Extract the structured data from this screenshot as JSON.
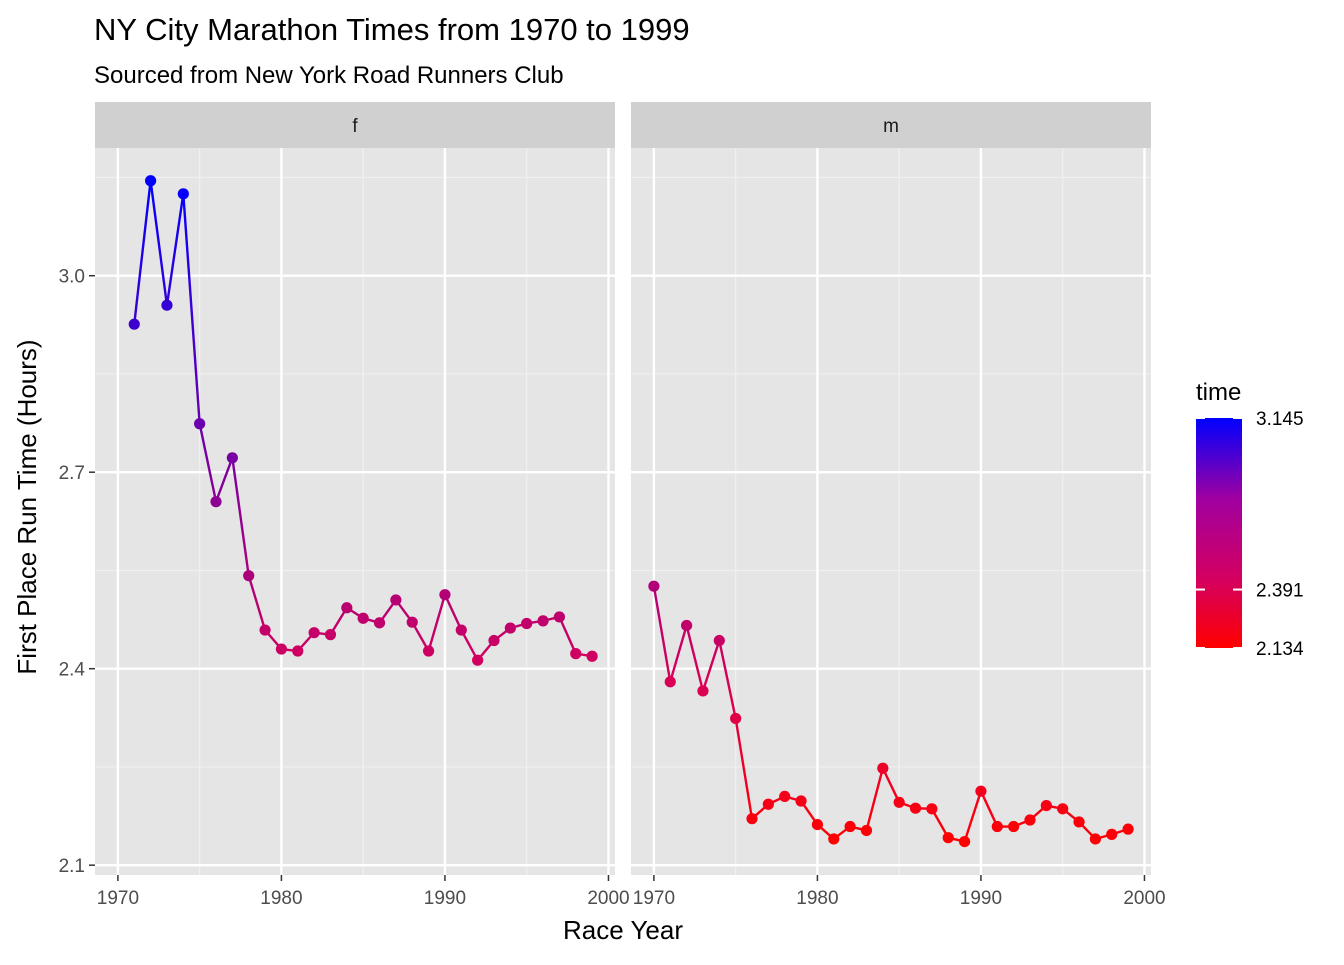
{
  "chart_data": {
    "type": "line",
    "title": "NY City Marathon Times from 1970 to 1999",
    "subtitle": "Sourced from New York Road Runners Club",
    "xlabel": "Race Year",
    "ylabel": "First Place Run Time (Hours)",
    "xlim": [
      1968.6,
      2000.4
    ],
    "ylim": [
      2.085,
      3.195
    ],
    "x_ticks": [
      1970,
      1980,
      1990,
      2000
    ],
    "x_tick_labels": [
      "1970",
      "1980",
      "1990",
      "2000"
    ],
    "y_ticks": [
      2.1,
      2.4,
      2.7,
      3.0
    ],
    "y_tick_labels": [
      "2.1",
      "2.4",
      "2.7",
      "3.0"
    ],
    "grid": true,
    "facets": [
      {
        "label": "f",
        "x": [
          1971,
          1972,
          1973,
          1974,
          1975,
          1976,
          1977,
          1978,
          1979,
          1980,
          1981,
          1982,
          1983,
          1984,
          1985,
          1986,
          1987,
          1988,
          1989,
          1990,
          1991,
          1992,
          1993,
          1994,
          1995,
          1996,
          1997,
          1998,
          1999
        ],
        "y": [
          2.926,
          3.145,
          2.955,
          3.125,
          2.774,
          2.655,
          2.722,
          2.542,
          2.459,
          2.43,
          2.427,
          2.455,
          2.452,
          2.493,
          2.477,
          2.47,
          2.505,
          2.471,
          2.427,
          2.513,
          2.459,
          2.413,
          2.443,
          2.462,
          2.469,
          2.473,
          2.479,
          2.423,
          2.419
        ]
      },
      {
        "label": "m",
        "x": [
          1970,
          1971,
          1972,
          1973,
          1974,
          1975,
          1976,
          1977,
          1978,
          1979,
          1980,
          1981,
          1982,
          1983,
          1984,
          1985,
          1986,
          1987,
          1988,
          1989,
          1990,
          1991,
          1992,
          1993,
          1994,
          1995,
          1996,
          1997,
          1998,
          1999
        ],
        "y": [
          2.526,
          2.38,
          2.466,
          2.366,
          2.443,
          2.324,
          2.171,
          2.193,
          2.205,
          2.198,
          2.162,
          2.14,
          2.159,
          2.153,
          2.248,
          2.196,
          2.187,
          2.186,
          2.142,
          2.136,
          2.213,
          2.159,
          2.159,
          2.169,
          2.191,
          2.186,
          2.166,
          2.14,
          2.147,
          2.155
        ]
      }
    ],
    "legend": {
      "title": "time",
      "placement": "right",
      "min": 2.134,
      "mid": 2.391,
      "max": 3.145,
      "labels": [
        "3.145",
        "2.391",
        "2.134"
      ],
      "low_color": "#ff0000",
      "high_color": "#0000ff"
    },
    "colors": {
      "panel_bg": "#e5e5e5",
      "strip_bg": "#d0d0d0",
      "grid_major": "#ffffff",
      "grid_minor": "#f0f0f0"
    }
  }
}
